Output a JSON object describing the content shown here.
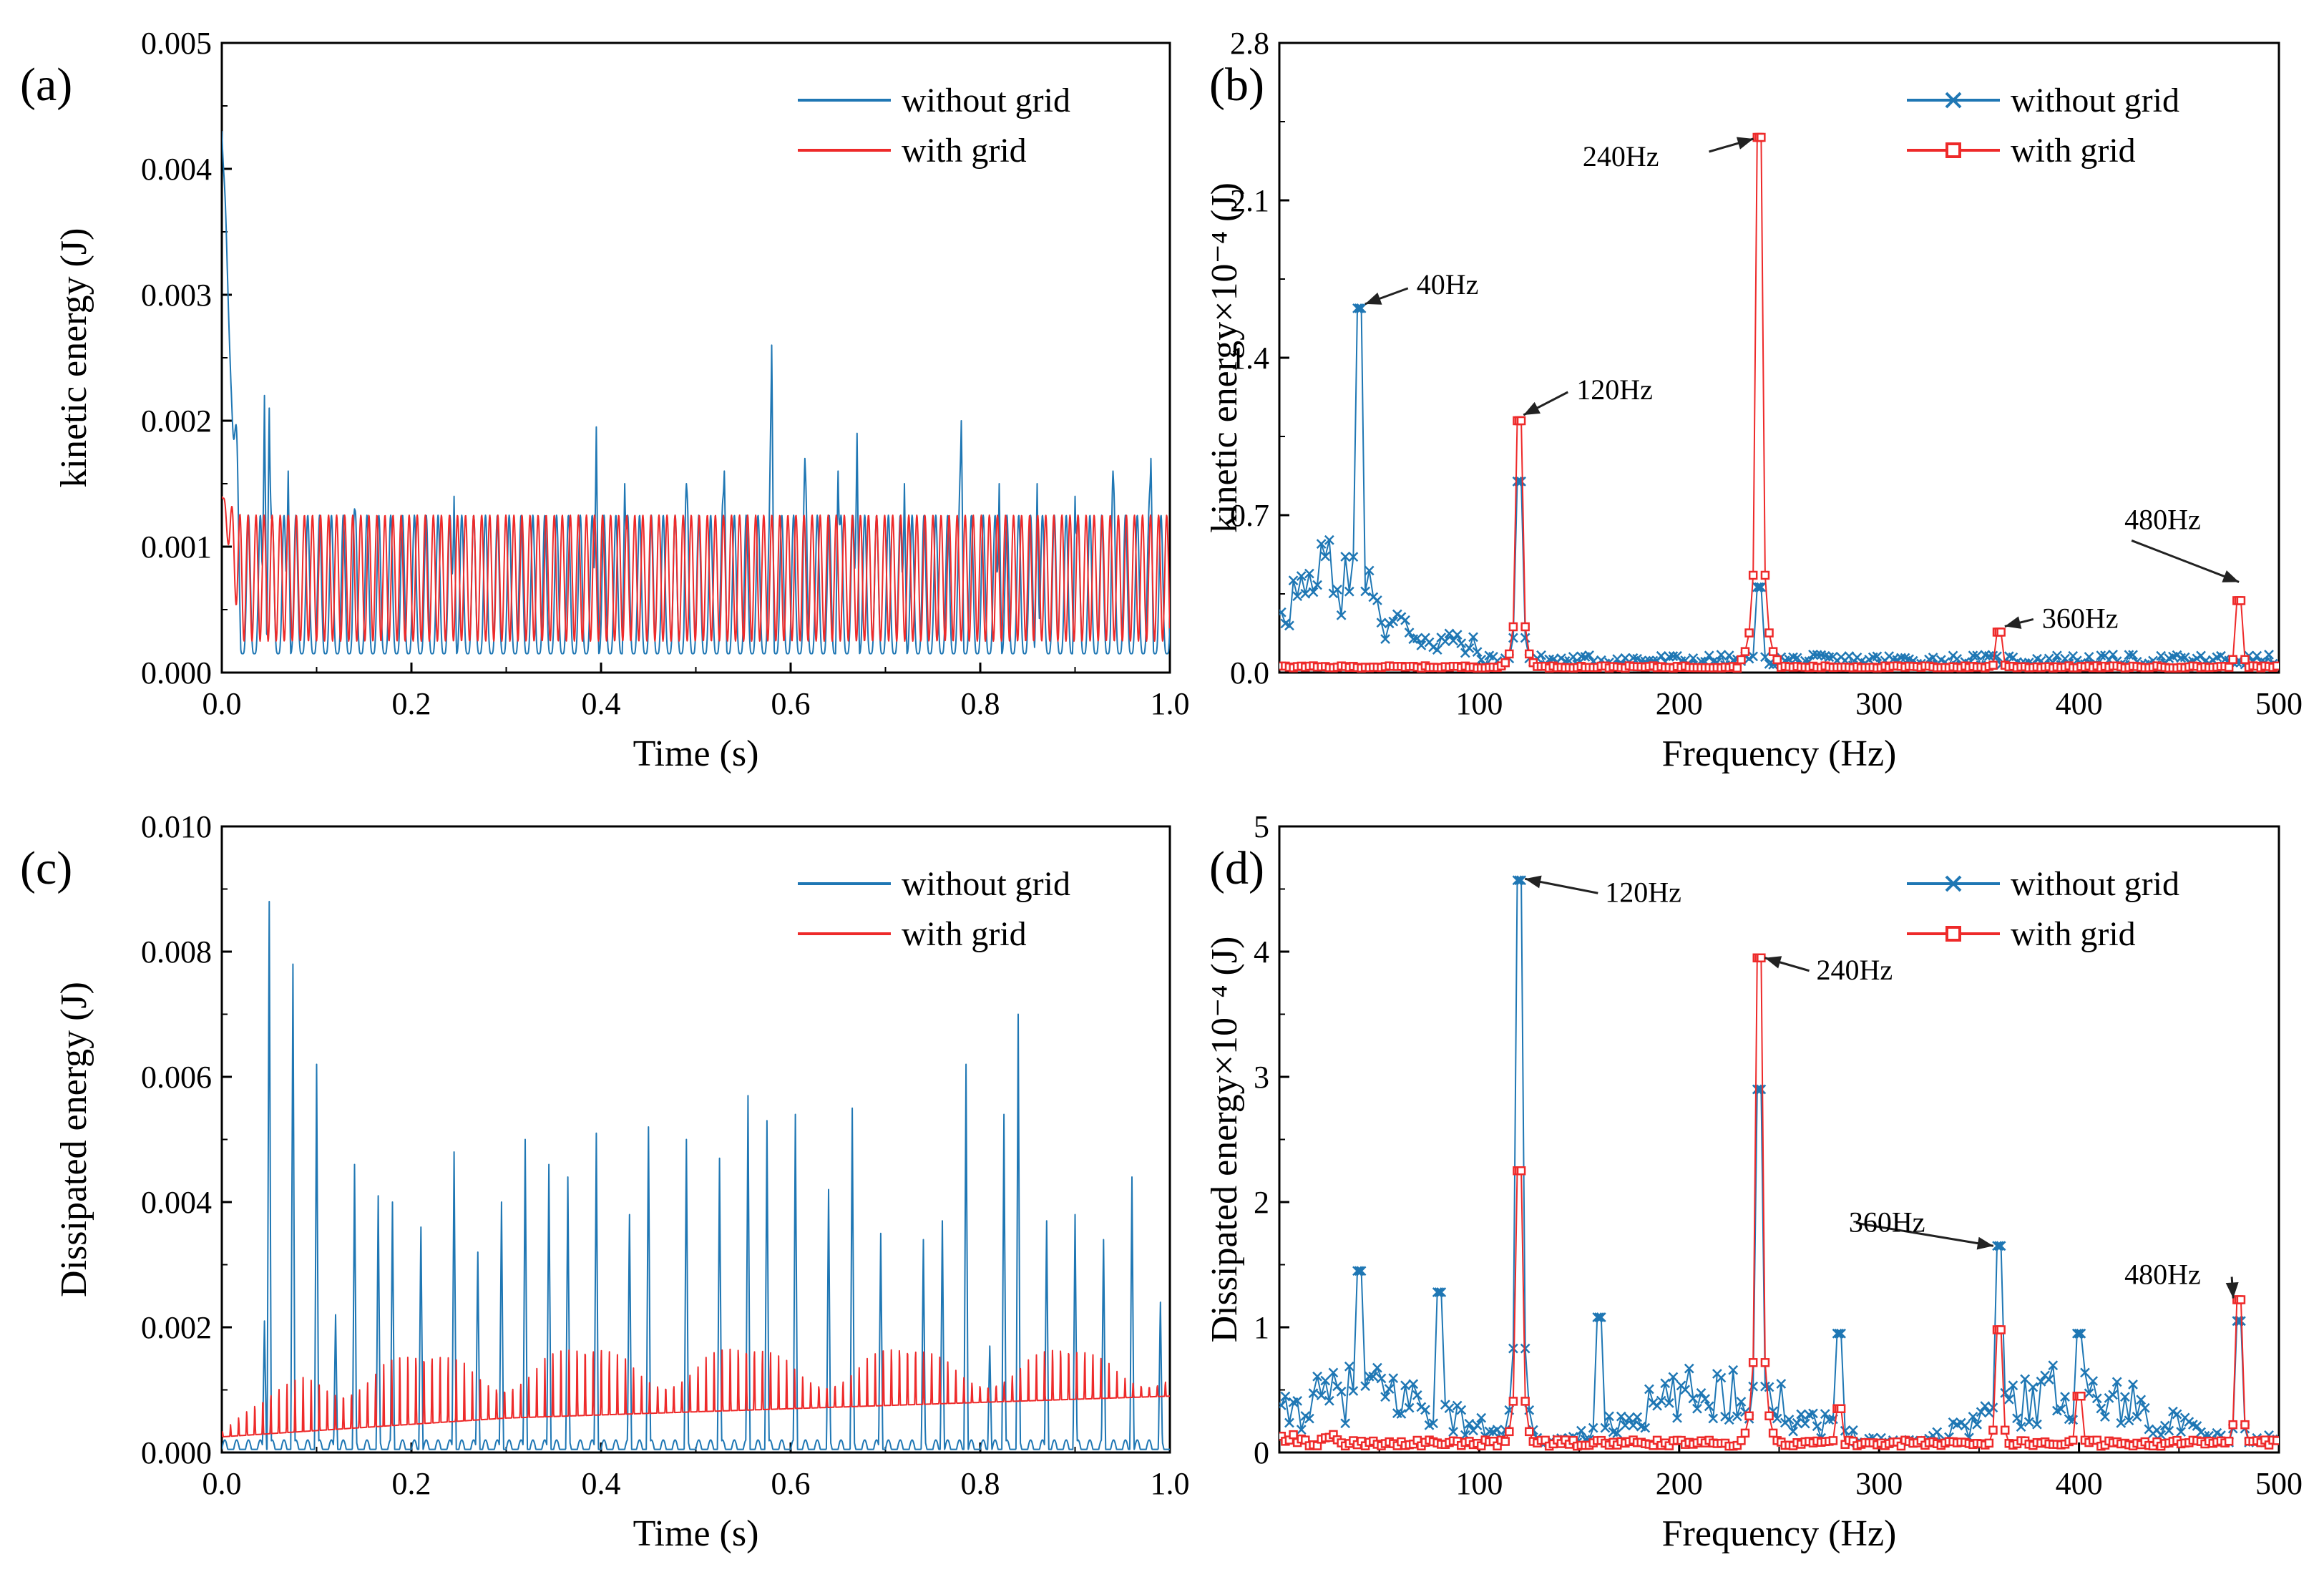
{
  "colors": {
    "blue": "#1f77b4",
    "red": "#ee2a2a",
    "axis": "#000000"
  },
  "chart_data": [
    {
      "panel": "(a)",
      "type": "line",
      "xlabel": "Time (s)",
      "ylabel": "kinetic energy (J)",
      "xlim": [
        0,
        1.0
      ],
      "ylim": [
        0,
        0.005
      ],
      "xticks": [
        "0.0",
        "0.2",
        "0.4",
        "0.6",
        "0.8",
        "1.0"
      ],
      "yticks": [
        "0.000",
        "0.001",
        "0.002",
        "0.003",
        "0.004",
        "0.005"
      ],
      "legend_position": "top-right",
      "series": [
        {
          "name": "without grid",
          "color": "blue",
          "marker": "none",
          "base_min": 0.00015,
          "base_max": 0.00125,
          "period": 0.0125,
          "start_value": 0.0043,
          "spikes": [
            [
              0.045,
              0.0022
            ],
            [
              0.05,
              0.0021
            ],
            [
              0.07,
              0.0016
            ],
            [
              0.14,
              0.0013
            ],
            [
              0.245,
              0.0014
            ],
            [
              0.395,
              0.00195
            ],
            [
              0.425,
              0.0015
            ],
            [
              0.49,
              0.0015
            ],
            [
              0.53,
              0.0016
            ],
            [
              0.58,
              0.0026
            ],
            [
              0.615,
              0.0017
            ],
            [
              0.65,
              0.0016
            ],
            [
              0.67,
              0.0019
            ],
            [
              0.72,
              0.0015
            ],
            [
              0.78,
              0.002
            ],
            [
              0.82,
              0.0015
            ],
            [
              0.86,
              0.0015
            ],
            [
              0.9,
              0.0014
            ],
            [
              0.94,
              0.0016
            ],
            [
              0.98,
              0.0017
            ]
          ]
        },
        {
          "name": "with grid",
          "color": "red",
          "marker": "none",
          "base_min": 0.00025,
          "base_max": 0.00125,
          "period": 0.0085,
          "start_value": 0.0014,
          "spikes": []
        }
      ]
    },
    {
      "panel": "(b)",
      "type": "line",
      "xlabel": "Frequency (Hz)",
      "ylabel": "kinetic energy×10⁻⁴ (J)",
      "xlim": [
        0,
        500
      ],
      "ylim": [
        0,
        2.8
      ],
      "xticks": [
        "100",
        "200",
        "300",
        "400",
        "500"
      ],
      "yticks": [
        "0.0",
        "0.7",
        "1.4",
        "2.1",
        "2.8"
      ],
      "legend_position": "top-right",
      "series": [
        {
          "name": "without grid",
          "color": "blue",
          "marker": "x",
          "peaks": [
            [
              40,
              1.62
            ],
            [
              120,
              0.85
            ],
            [
              240,
              0.38
            ]
          ]
        },
        {
          "name": "with grid",
          "color": "red",
          "marker": "square",
          "peaks": [
            [
              120,
              1.12
            ],
            [
              240,
              2.38
            ],
            [
              360,
              0.18
            ],
            [
              480,
              0.32
            ]
          ]
        }
      ],
      "annotations": [
        {
          "text": "40Hz",
          "x": 40,
          "y": 1.62
        },
        {
          "text": "120Hz",
          "x": 120,
          "y": 1.12
        },
        {
          "text": "240Hz",
          "x": 240,
          "y": 2.38
        },
        {
          "text": "360Hz",
          "x": 360,
          "y": 0.18
        },
        {
          "text": "480Hz",
          "x": 480,
          "y": 0.32
        }
      ]
    },
    {
      "panel": "(c)",
      "type": "line",
      "xlabel": "Time (s)",
      "ylabel": "Dissipated energy (J)",
      "xlim": [
        0,
        1.0
      ],
      "ylim": [
        0,
        0.01
      ],
      "xticks": [
        "0.0",
        "0.2",
        "0.4",
        "0.6",
        "0.8",
        "1.0"
      ],
      "yticks": [
        "0.000",
        "0.002",
        "0.004",
        "0.006",
        "0.008",
        "0.010"
      ],
      "legend_position": "top-right",
      "series": [
        {
          "name": "without grid",
          "color": "blue",
          "marker": "none",
          "spikes": [
            [
              0.045,
              0.0021
            ],
            [
              0.05,
              0.0088
            ],
            [
              0.075,
              0.0078
            ],
            [
              0.1,
              0.0062
            ],
            [
              0.12,
              0.0022
            ],
            [
              0.14,
              0.0046
            ],
            [
              0.165,
              0.0041
            ],
            [
              0.18,
              0.004
            ],
            [
              0.21,
              0.0036
            ],
            [
              0.245,
              0.0048
            ],
            [
              0.27,
              0.0032
            ],
            [
              0.295,
              0.004
            ],
            [
              0.32,
              0.005
            ],
            [
              0.345,
              0.0046
            ],
            [
              0.365,
              0.0044
            ],
            [
              0.395,
              0.0051
            ],
            [
              0.43,
              0.0038
            ],
            [
              0.45,
              0.0052
            ],
            [
              0.49,
              0.005
            ],
            [
              0.525,
              0.0047
            ],
            [
              0.555,
              0.0057
            ],
            [
              0.575,
              0.0053
            ],
            [
              0.605,
              0.0054
            ],
            [
              0.64,
              0.0042
            ],
            [
              0.665,
              0.0055
            ],
            [
              0.695,
              0.0035
            ],
            [
              0.74,
              0.0034
            ],
            [
              0.76,
              0.0037
            ],
            [
              0.785,
              0.0062
            ],
            [
              0.81,
              0.0017
            ],
            [
              0.825,
              0.0054
            ],
            [
              0.84,
              0.007
            ],
            [
              0.87,
              0.0037
            ],
            [
              0.9,
              0.0038
            ],
            [
              0.93,
              0.0034
            ],
            [
              0.96,
              0.0044
            ],
            [
              0.99,
              0.0024
            ]
          ]
        },
        {
          "name": "with grid",
          "color": "red",
          "marker": "none",
          "period": 0.0085,
          "envelope": [
            [
              0.0,
              0.0004
            ],
            [
              0.1,
              0.0017
            ],
            [
              0.4,
              0.0019
            ],
            [
              1.0,
              0.0018
            ]
          ],
          "base": [
            [
              0.0,
              0.00025
            ],
            [
              0.3,
              0.00055
            ],
            [
              0.6,
              0.0007
            ],
            [
              1.0,
              0.0009
            ]
          ]
        }
      ]
    },
    {
      "panel": "(d)",
      "type": "line",
      "xlabel": "Frequency (Hz)",
      "ylabel": "Dissipated energy×10⁻⁴ (J)",
      "xlim": [
        0,
        500
      ],
      "ylim": [
        0,
        5
      ],
      "xticks": [
        "100",
        "200",
        "300",
        "400",
        "500"
      ],
      "yticks": [
        "0",
        "1",
        "2",
        "3",
        "4",
        "5"
      ],
      "legend_position": "top-right",
      "series": [
        {
          "name": "without grid",
          "color": "blue",
          "marker": "x",
          "peaks": [
            [
              40,
              1.45
            ],
            [
              80,
              1.28
            ],
            [
              120,
              4.57
            ],
            [
              160,
              1.08
            ],
            [
              240,
              2.9
            ],
            [
              280,
              0.95
            ],
            [
              360,
              1.65
            ],
            [
              400,
              0.95
            ],
            [
              480,
              1.05
            ]
          ]
        },
        {
          "name": "with grid",
          "color": "red",
          "marker": "square",
          "peaks": [
            [
              120,
              2.25
            ],
            [
              240,
              3.95
            ],
            [
              280,
              0.35
            ],
            [
              360,
              0.98
            ],
            [
              400,
              0.45
            ],
            [
              480,
              1.22
            ]
          ]
        }
      ],
      "annotations": [
        {
          "text": "120Hz",
          "x": 120,
          "y": 4.57
        },
        {
          "text": "240Hz",
          "x": 240,
          "y": 3.95
        },
        {
          "text": "360Hz",
          "x": 360,
          "y": 1.65
        },
        {
          "text": "480Hz",
          "x": 480,
          "y": 1.22
        }
      ]
    }
  ]
}
